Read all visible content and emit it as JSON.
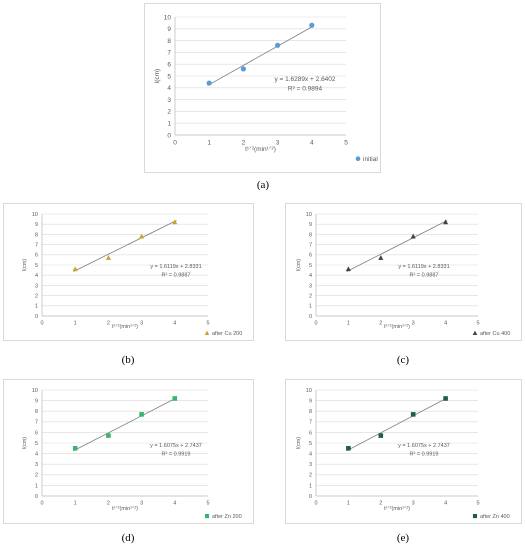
{
  "colors": {
    "axis": "#bfbfbf",
    "grid": "#d9d9d9",
    "trend": "#7f7f7f",
    "text": "#595959"
  },
  "chart_data": [
    {
      "id": "a",
      "caption": "(a)",
      "type": "scatter",
      "xlabel": "t¹ᐟ²(min¹ᐟ²)",
      "ylabel": "l(cm)",
      "xlim": [
        0,
        5
      ],
      "ylim": [
        0,
        10
      ],
      "xticks": [
        "0",
        "1",
        "2",
        "3",
        "4",
        "5"
      ],
      "yticks": [
        "0",
        "1",
        "2",
        "3",
        "4",
        "5",
        "6",
        "7",
        "8",
        "9",
        "10"
      ],
      "series": [
        {
          "name": "initial",
          "marker": "circle",
          "color": "#5b9bd5",
          "x": [
            1,
            2,
            3,
            4
          ],
          "y": [
            4.4,
            5.6,
            7.6,
            9.3
          ]
        }
      ],
      "trendline": {
        "slope": 1.6289,
        "intercept": 2.6402,
        "x_range": [
          1,
          4
        ]
      },
      "equation": "y = 1.6289x + 2.6402",
      "r2": "R² = 0.9894",
      "legend_position": "bottom-right"
    },
    {
      "id": "b",
      "caption": "(b)",
      "type": "scatter",
      "xlabel": "t¹ᐟ²(min¹ᐟ²)",
      "ylabel": "l(cm)",
      "xlim": [
        0,
        5
      ],
      "ylim": [
        0,
        10
      ],
      "xticks": [
        "0",
        "1",
        "2",
        "3",
        "4",
        "5"
      ],
      "yticks": [
        "0",
        "1",
        "2",
        "3",
        "4",
        "5",
        "6",
        "7",
        "8",
        "9",
        "10"
      ],
      "series": [
        {
          "name": "after Cu 200",
          "marker": "triangle",
          "color": "#c9a227",
          "x": [
            1,
            2,
            3,
            4
          ],
          "y": [
            4.6,
            5.7,
            7.8,
            9.2
          ]
        }
      ],
      "trendline": {
        "slope": 1.6119,
        "intercept": 2.8331,
        "x_range": [
          1,
          4
        ]
      },
      "equation": "y = 1.6119x + 2.8331",
      "r2": "R² = 0.9887",
      "legend_position": "bottom-right"
    },
    {
      "id": "c",
      "caption": "(c)",
      "type": "scatter",
      "xlabel": "t¹ᐟ²(min¹ᐟ²)",
      "ylabel": "l(cm)",
      "xlim": [
        0,
        5
      ],
      "ylim": [
        0,
        10
      ],
      "xticks": [
        "0",
        "1",
        "2",
        "3",
        "4",
        "5"
      ],
      "yticks": [
        "0",
        "1",
        "2",
        "3",
        "4",
        "5",
        "6",
        "7",
        "8",
        "9",
        "10"
      ],
      "series": [
        {
          "name": "after Cu 400",
          "marker": "triangle",
          "color": "#404040",
          "x": [
            1,
            2,
            3,
            4
          ],
          "y": [
            4.6,
            5.7,
            7.8,
            9.2
          ]
        }
      ],
      "trendline": {
        "slope": 1.6119,
        "intercept": 2.8331,
        "x_range": [
          1,
          4
        ]
      },
      "equation": "y = 1.6119x + 2.8331",
      "r2": "R² = 0.9887",
      "legend_position": "bottom-right"
    },
    {
      "id": "d",
      "caption": "(d)",
      "type": "scatter",
      "xlabel": "t¹ᐟ²(min¹ᐟ²)",
      "ylabel": "l(cm)",
      "xlim": [
        0,
        5
      ],
      "ylim": [
        0,
        10
      ],
      "xticks": [
        "0",
        "1",
        "2",
        "3",
        "4",
        "5"
      ],
      "yticks": [
        "0",
        "1",
        "2",
        "3",
        "4",
        "5",
        "6",
        "7",
        "8",
        "9",
        "10"
      ],
      "series": [
        {
          "name": "after Zn 200",
          "marker": "square",
          "color": "#3cb371",
          "x": [
            1,
            2,
            3,
            4
          ],
          "y": [
            4.5,
            5.7,
            7.7,
            9.2
          ]
        }
      ],
      "trendline": {
        "slope": 1.6075,
        "intercept": 2.7437,
        "x_range": [
          1,
          4
        ]
      },
      "equation": "y = 1.6075x + 2.7437",
      "r2": "R² = 0.9919",
      "legend_position": "bottom-right"
    },
    {
      "id": "e",
      "caption": "(e)",
      "type": "scatter",
      "xlabel": "t¹ᐟ²(min¹ᐟ²)",
      "ylabel": "l(cm)",
      "xlim": [
        0,
        5
      ],
      "ylim": [
        0,
        10
      ],
      "xticks": [
        "0",
        "1",
        "2",
        "3",
        "4",
        "5"
      ],
      "yticks": [
        "0",
        "1",
        "2",
        "3",
        "4",
        "5",
        "6",
        "7",
        "8",
        "9",
        "10"
      ],
      "series": [
        {
          "name": "after Zn 400",
          "marker": "square",
          "color": "#1e5e4a",
          "x": [
            1,
            2,
            3,
            4
          ],
          "y": [
            4.5,
            5.7,
            7.7,
            9.2
          ]
        }
      ],
      "trendline": {
        "slope": 1.6075,
        "intercept": 2.7437,
        "x_range": [
          1,
          4
        ]
      },
      "equation": "y = 1.6075x + 2.7437",
      "r2": "R² = 0.9919",
      "legend_position": "bottom-right"
    }
  ]
}
